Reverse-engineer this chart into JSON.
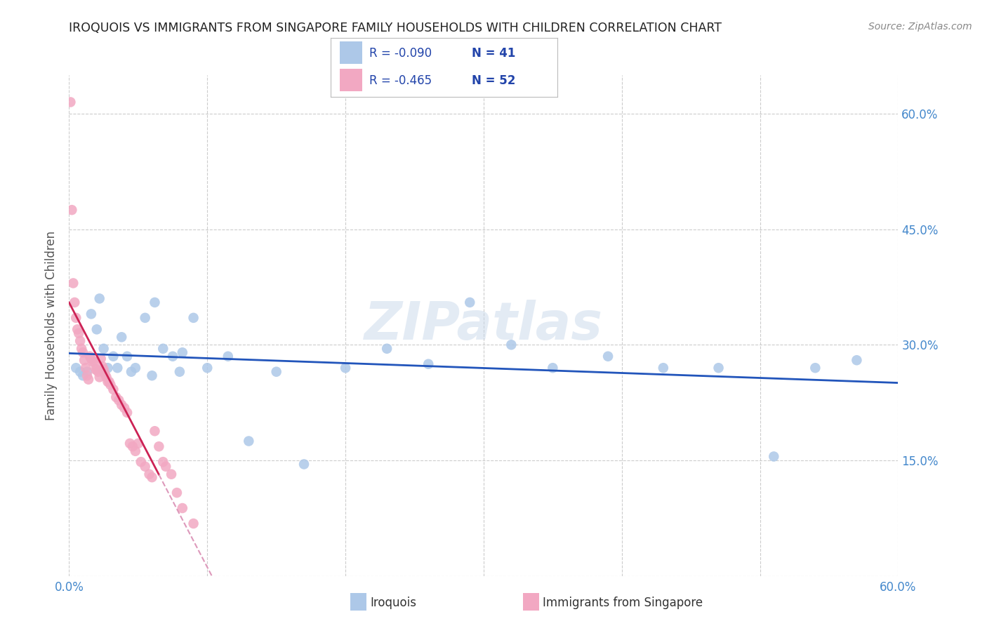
{
  "title": "IROQUOIS VS IMMIGRANTS FROM SINGAPORE FAMILY HOUSEHOLDS WITH CHILDREN CORRELATION CHART",
  "source": "Source: ZipAtlas.com",
  "ylabel": "Family Households with Children",
  "xlim": [
    0.0,
    0.6
  ],
  "ylim": [
    0.0,
    0.65
  ],
  "xticks": [
    0.0,
    0.1,
    0.2,
    0.3,
    0.4,
    0.5,
    0.6
  ],
  "xticklabels": [
    "0.0%",
    "",
    "",
    "",
    "",
    "",
    "60.0%"
  ],
  "yticks": [
    0.0,
    0.15,
    0.3,
    0.45,
    0.6
  ],
  "yticklabels_right": [
    "",
    "15.0%",
    "30.0%",
    "45.0%",
    "60.0%"
  ],
  "legend_label1": "Iroquois",
  "legend_label2": "Immigrants from Singapore",
  "legend_R1": "-0.090",
  "legend_N1": "41",
  "legend_R2": "-0.465",
  "legend_N2": "52",
  "color_blue": "#adc8e8",
  "color_pink": "#f2a8c2",
  "color_blue_line": "#2255bb",
  "color_pink_line": "#cc2255",
  "color_pink_dash": "#dd99bb",
  "background": "#ffffff",
  "grid_color": "#cccccc",
  "watermark": "ZIPatlas",
  "iroquois_x": [
    0.005,
    0.008,
    0.01,
    0.013,
    0.016,
    0.02,
    0.022,
    0.025,
    0.028,
    0.032,
    0.038,
    0.042,
    0.048,
    0.055,
    0.062,
    0.068,
    0.075,
    0.082,
    0.09,
    0.1,
    0.115,
    0.13,
    0.15,
    0.17,
    0.2,
    0.23,
    0.26,
    0.29,
    0.32,
    0.35,
    0.39,
    0.43,
    0.47,
    0.51,
    0.54,
    0.57,
    0.025,
    0.035,
    0.045,
    0.06,
    0.08
  ],
  "iroquois_y": [
    0.27,
    0.265,
    0.26,
    0.265,
    0.34,
    0.32,
    0.36,
    0.295,
    0.27,
    0.285,
    0.31,
    0.285,
    0.27,
    0.335,
    0.355,
    0.295,
    0.285,
    0.29,
    0.335,
    0.27,
    0.285,
    0.175,
    0.265,
    0.145,
    0.27,
    0.295,
    0.275,
    0.355,
    0.3,
    0.27,
    0.285,
    0.27,
    0.27,
    0.155,
    0.27,
    0.28,
    0.265,
    0.27,
    0.265,
    0.26,
    0.265
  ],
  "singapore_x": [
    0.001,
    0.002,
    0.003,
    0.004,
    0.005,
    0.006,
    0.007,
    0.008,
    0.009,
    0.01,
    0.011,
    0.012,
    0.013,
    0.014,
    0.015,
    0.016,
    0.017,
    0.018,
    0.019,
    0.02,
    0.021,
    0.022,
    0.023,
    0.024,
    0.025,
    0.026,
    0.027,
    0.028,
    0.029,
    0.03,
    0.032,
    0.034,
    0.036,
    0.038,
    0.04,
    0.042,
    0.044,
    0.046,
    0.048,
    0.05,
    0.052,
    0.055,
    0.058,
    0.06,
    0.062,
    0.065,
    0.068,
    0.07,
    0.074,
    0.078,
    0.082,
    0.09
  ],
  "singapore_y": [
    0.615,
    0.475,
    0.38,
    0.355,
    0.335,
    0.32,
    0.315,
    0.305,
    0.295,
    0.29,
    0.28,
    0.27,
    0.26,
    0.255,
    0.285,
    0.282,
    0.278,
    0.278,
    0.268,
    0.268,
    0.265,
    0.258,
    0.282,
    0.272,
    0.268,
    0.262,
    0.258,
    0.252,
    0.252,
    0.248,
    0.242,
    0.232,
    0.228,
    0.222,
    0.218,
    0.212,
    0.172,
    0.168,
    0.162,
    0.172,
    0.148,
    0.142,
    0.132,
    0.128,
    0.188,
    0.168,
    0.148,
    0.142,
    0.132,
    0.108,
    0.088,
    0.068
  ]
}
